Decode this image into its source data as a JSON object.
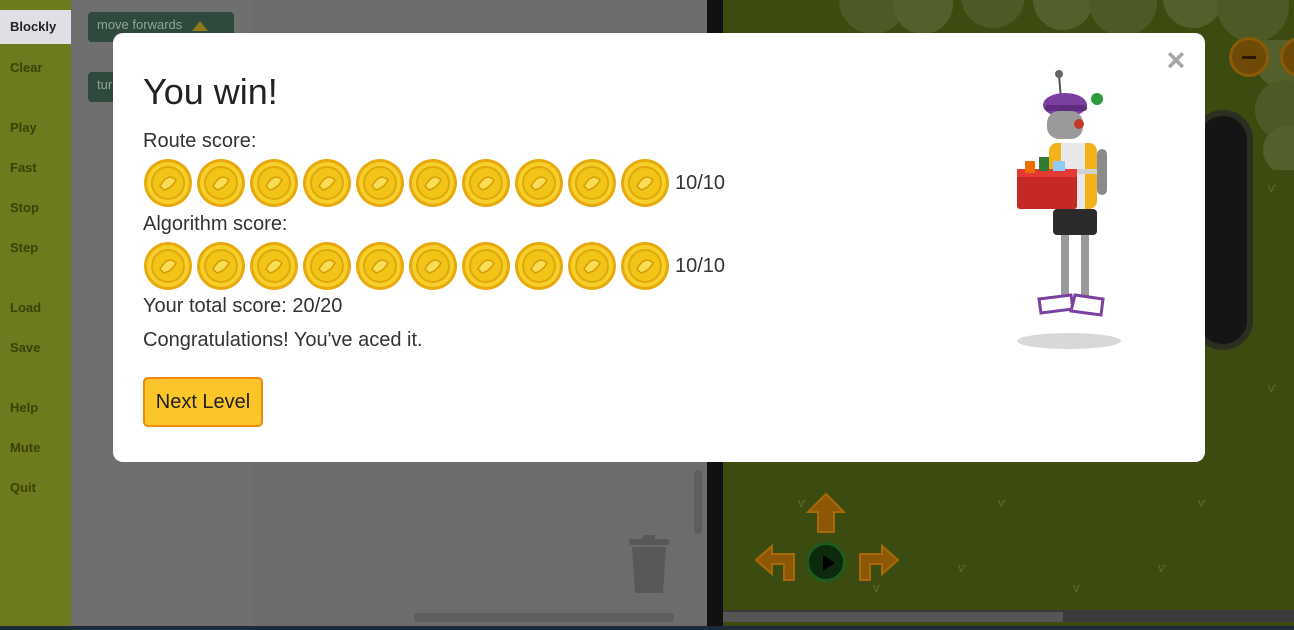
{
  "sidebar": {
    "tabs": [
      {
        "label": "Blockly",
        "active": true
      },
      {
        "label": "Clear"
      },
      {
        "label": "Play"
      },
      {
        "label": "Fast"
      },
      {
        "label": "Stop"
      },
      {
        "label": "Step"
      },
      {
        "label": "Load"
      },
      {
        "label": "Save"
      },
      {
        "label": "Help"
      },
      {
        "label": "Mute"
      },
      {
        "label": "Quit"
      }
    ]
  },
  "toolbox": {
    "blocks": [
      {
        "label": "move forwards"
      },
      {
        "label": "tur"
      }
    ]
  },
  "modal": {
    "title": "You win!",
    "close_glyph": "×",
    "route_label": "Route score:",
    "route_score": "10/10",
    "route_coins": 10,
    "algorithm_label": "Algorithm score:",
    "algorithm_score": "10/10",
    "algorithm_coins": 10,
    "total_line": "Your total score: 20/20",
    "message": "Congratulations! You've aced it.",
    "next_button": "Next Level"
  },
  "colors": {
    "sidebar": "#6d7a1e",
    "map_grass": "#3c4c10",
    "coin_gold": "#f2c418",
    "button_fill": "#fcc62a",
    "button_border": "#f08a0a"
  },
  "icons": {
    "coin": "gold-coin-icon",
    "close": "close-icon",
    "trash": "trash-icon",
    "play": "play-icon",
    "arrow_up": "arrow-up-icon",
    "arrow_left": "turn-left-icon",
    "arrow_right": "turn-right-icon",
    "zoom_out": "zoom-out-icon"
  }
}
